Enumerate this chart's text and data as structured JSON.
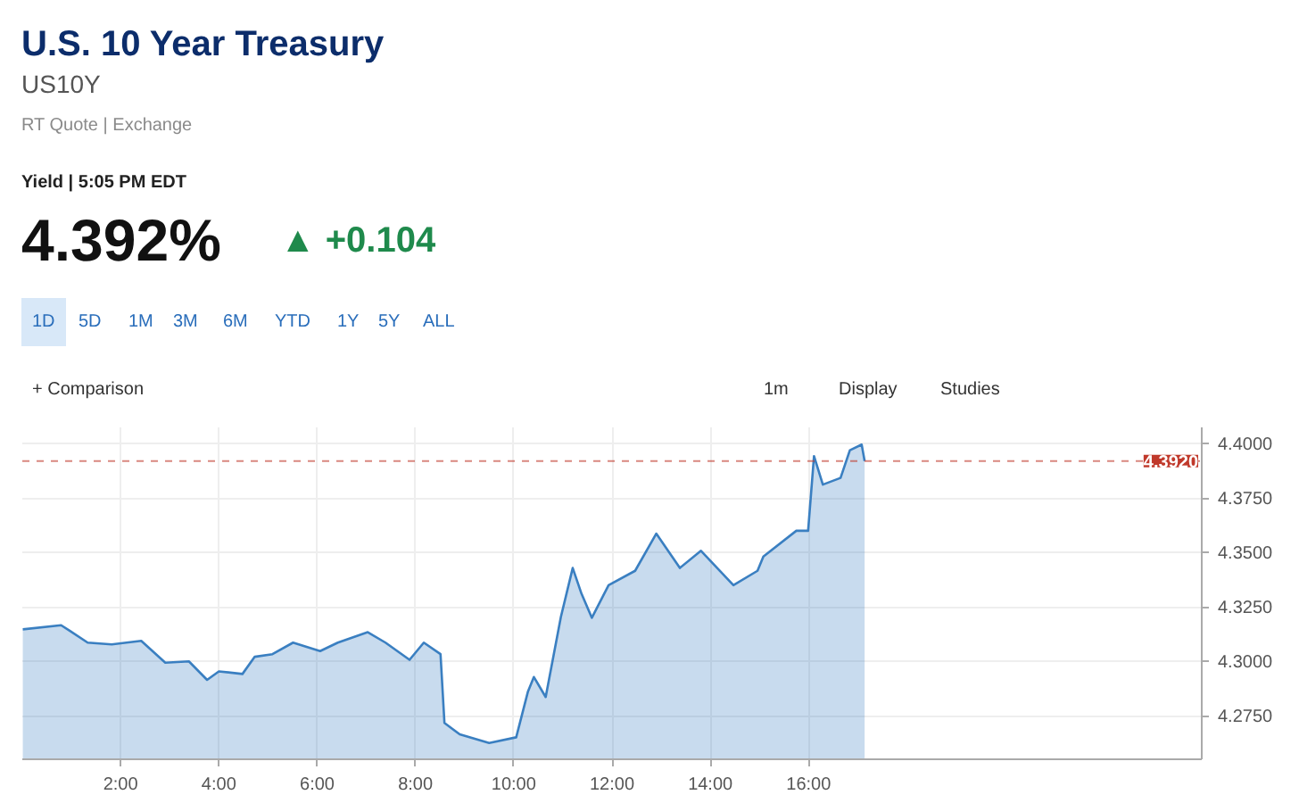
{
  "chart_data": {
    "type": "area",
    "title": "U.S. 10 Year Treasury",
    "subtitle": "US10Y",
    "annotations": [
      "RT Quote | Exchange",
      "Yield | 5:05 PM EDT",
      "4.392%",
      "▲ +0.104",
      "1D",
      "5D",
      "1M",
      "3M",
      "6M",
      "YTD",
      "1Y",
      "5Y",
      "ALL",
      "+ Comparison",
      "1m",
      "Display",
      "Studies"
    ],
    "x": [
      0.01,
      0.79,
      0.97,
      1.33,
      1.82,
      2.42,
      2.91,
      3.39,
      3.76,
      4.0,
      4.48,
      4.73,
      5.09,
      5.51,
      6.06,
      6.42,
      7.03,
      7.39,
      7.88,
      8.17,
      8.51,
      8.59,
      8.9,
      9.5,
      10.05,
      10.29,
      10.41,
      10.65,
      10.96,
      11.2,
      11.38,
      11.59,
      11.93,
      12.47,
      12.9,
      13.38,
      13.81,
      14.47,
      14.96,
      15.08,
      15.75,
      15.99,
      16.11,
      16.29,
      16.65,
      16.84,
      17.08,
      17.14
    ],
    "series": [
      {
        "color": "#3a7fc1",
        "values": [
          4.3147,
          4.3166,
          4.314,
          4.3086,
          4.3078,
          4.3094,
          4.2994,
          4.3,
          4.2915,
          4.2954,
          4.2942,
          4.3021,
          4.3033,
          4.3086,
          4.3047,
          4.3086,
          4.3134,
          4.3086,
          4.3007,
          4.3086,
          4.3033,
          4.2717,
          4.2665,
          4.2625,
          4.2651,
          4.2862,
          4.2928,
          4.2836,
          4.3205,
          4.3429,
          4.331,
          4.32,
          4.335,
          4.3416,
          4.3587,
          4.3429,
          4.3508,
          4.335,
          4.3416,
          4.3482,
          4.36,
          4.36,
          4.3943,
          4.3812,
          4.3843,
          4.397,
          4.3996,
          4.392
        ]
      }
    ],
    "xlim": [
      0,
      24
    ],
    "ylim": [
      4.255,
      4.4075
    ],
    "xticks": [
      {
        "value": 2,
        "label": "2:00"
      },
      {
        "value": 4,
        "label": "4:00"
      },
      {
        "value": 6,
        "label": "6:00"
      },
      {
        "value": 8,
        "label": "8:00"
      },
      {
        "value": 10,
        "label": "10:00"
      },
      {
        "value": 12,
        "label": "12:00"
      },
      {
        "value": 14,
        "label": "14:00"
      },
      {
        "value": 16,
        "label": "16:00"
      }
    ],
    "yticks": [
      {
        "value": 4.275,
        "label": "4.2750"
      },
      {
        "value": 4.3,
        "label": "4.3000"
      },
      {
        "value": 4.325,
        "label": "4.3250"
      },
      {
        "value": 4.35,
        "label": "4.3500"
      },
      {
        "value": 4.375,
        "label": "4.3750"
      },
      {
        "value": 4.4,
        "label": "4.4000"
      }
    ],
    "ref_lines": [
      {
        "axis": "y",
        "value": 4.392,
        "label": "4.3920",
        "color": "#c0392b",
        "line_style": "dashed"
      }
    ],
    "grid": true
  }
}
